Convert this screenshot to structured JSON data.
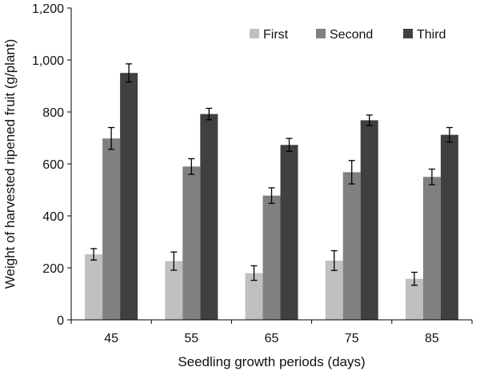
{
  "chart_data": {
    "type": "bar",
    "title": "",
    "xlabel": "Seedling growth periods (days)",
    "ylabel": "Weight of harvested ripened fruit (g/plant)",
    "ylim": [
      0,
      1200
    ],
    "yticks": [
      0,
      200,
      400,
      600,
      800,
      1000,
      1200
    ],
    "ytick_labels": [
      "0",
      "200",
      "400",
      "600",
      "800",
      "1,000",
      "1,200"
    ],
    "grid": false,
    "legend_position": "top-right",
    "categories": [
      "45",
      "55",
      "65",
      "75",
      "85"
    ],
    "series": [
      {
        "name": "First",
        "color": "#C0C0C0",
        "values": [
          252,
          226,
          180,
          228,
          158
        ],
        "errors": [
          22,
          35,
          28,
          38,
          25
        ]
      },
      {
        "name": "Second",
        "color": "#808080",
        "values": [
          698,
          590,
          478,
          568,
          550
        ],
        "errors": [
          42,
          30,
          30,
          45,
          30
        ]
      },
      {
        "name": "Third",
        "color": "#404040",
        "values": [
          950,
          792,
          673,
          768,
          712
        ],
        "errors": [
          35,
          22,
          25,
          20,
          28
        ]
      }
    ]
  }
}
